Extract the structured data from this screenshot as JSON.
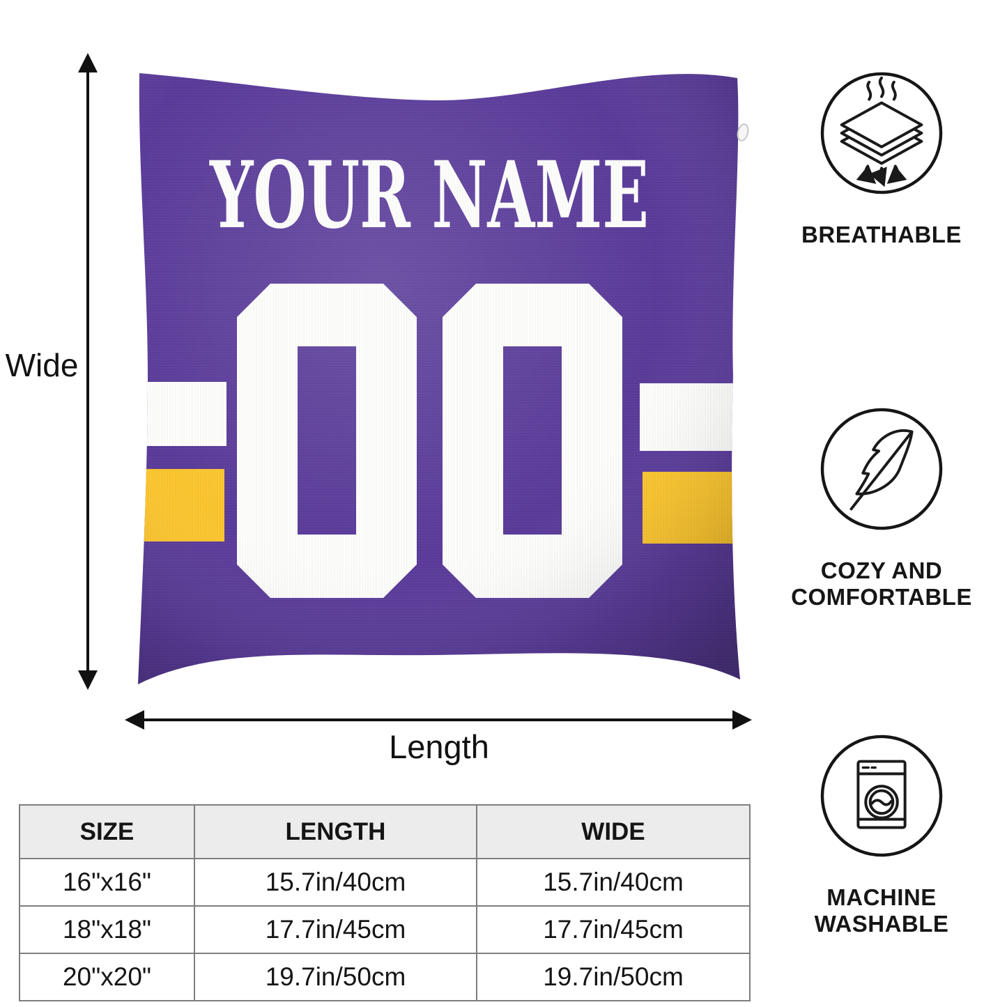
{
  "pillow": {
    "name_text": "YOUR NAME",
    "number_text": "00",
    "colors": {
      "purple": "#593A99",
      "gold": "#FCC52D",
      "white": "#FDFDFC"
    }
  },
  "dimensions": {
    "wide_label": "Wide",
    "length_label": "Length"
  },
  "features": [
    {
      "icon": "breathable-layers-icon",
      "lines": [
        "BREATHABLE"
      ]
    },
    {
      "icon": "feather-icon",
      "lines": [
        "COZY AND",
        "COMFORTABLE"
      ]
    },
    {
      "icon": "washing-machine-icon",
      "lines": [
        "MACHINE",
        "WASHABLE"
      ]
    }
  ],
  "size_table": {
    "headers": [
      "SIZE",
      "LENGTH",
      "WIDE"
    ],
    "rows": [
      [
        "16\"x16\"",
        "15.7in/40cm",
        "15.7in/40cm"
      ],
      [
        "18\"x18\"",
        "17.7in/45cm",
        "17.7in/45cm"
      ],
      [
        "20\"x20\"",
        "19.7in/50cm",
        "19.7in/50cm"
      ]
    ]
  }
}
